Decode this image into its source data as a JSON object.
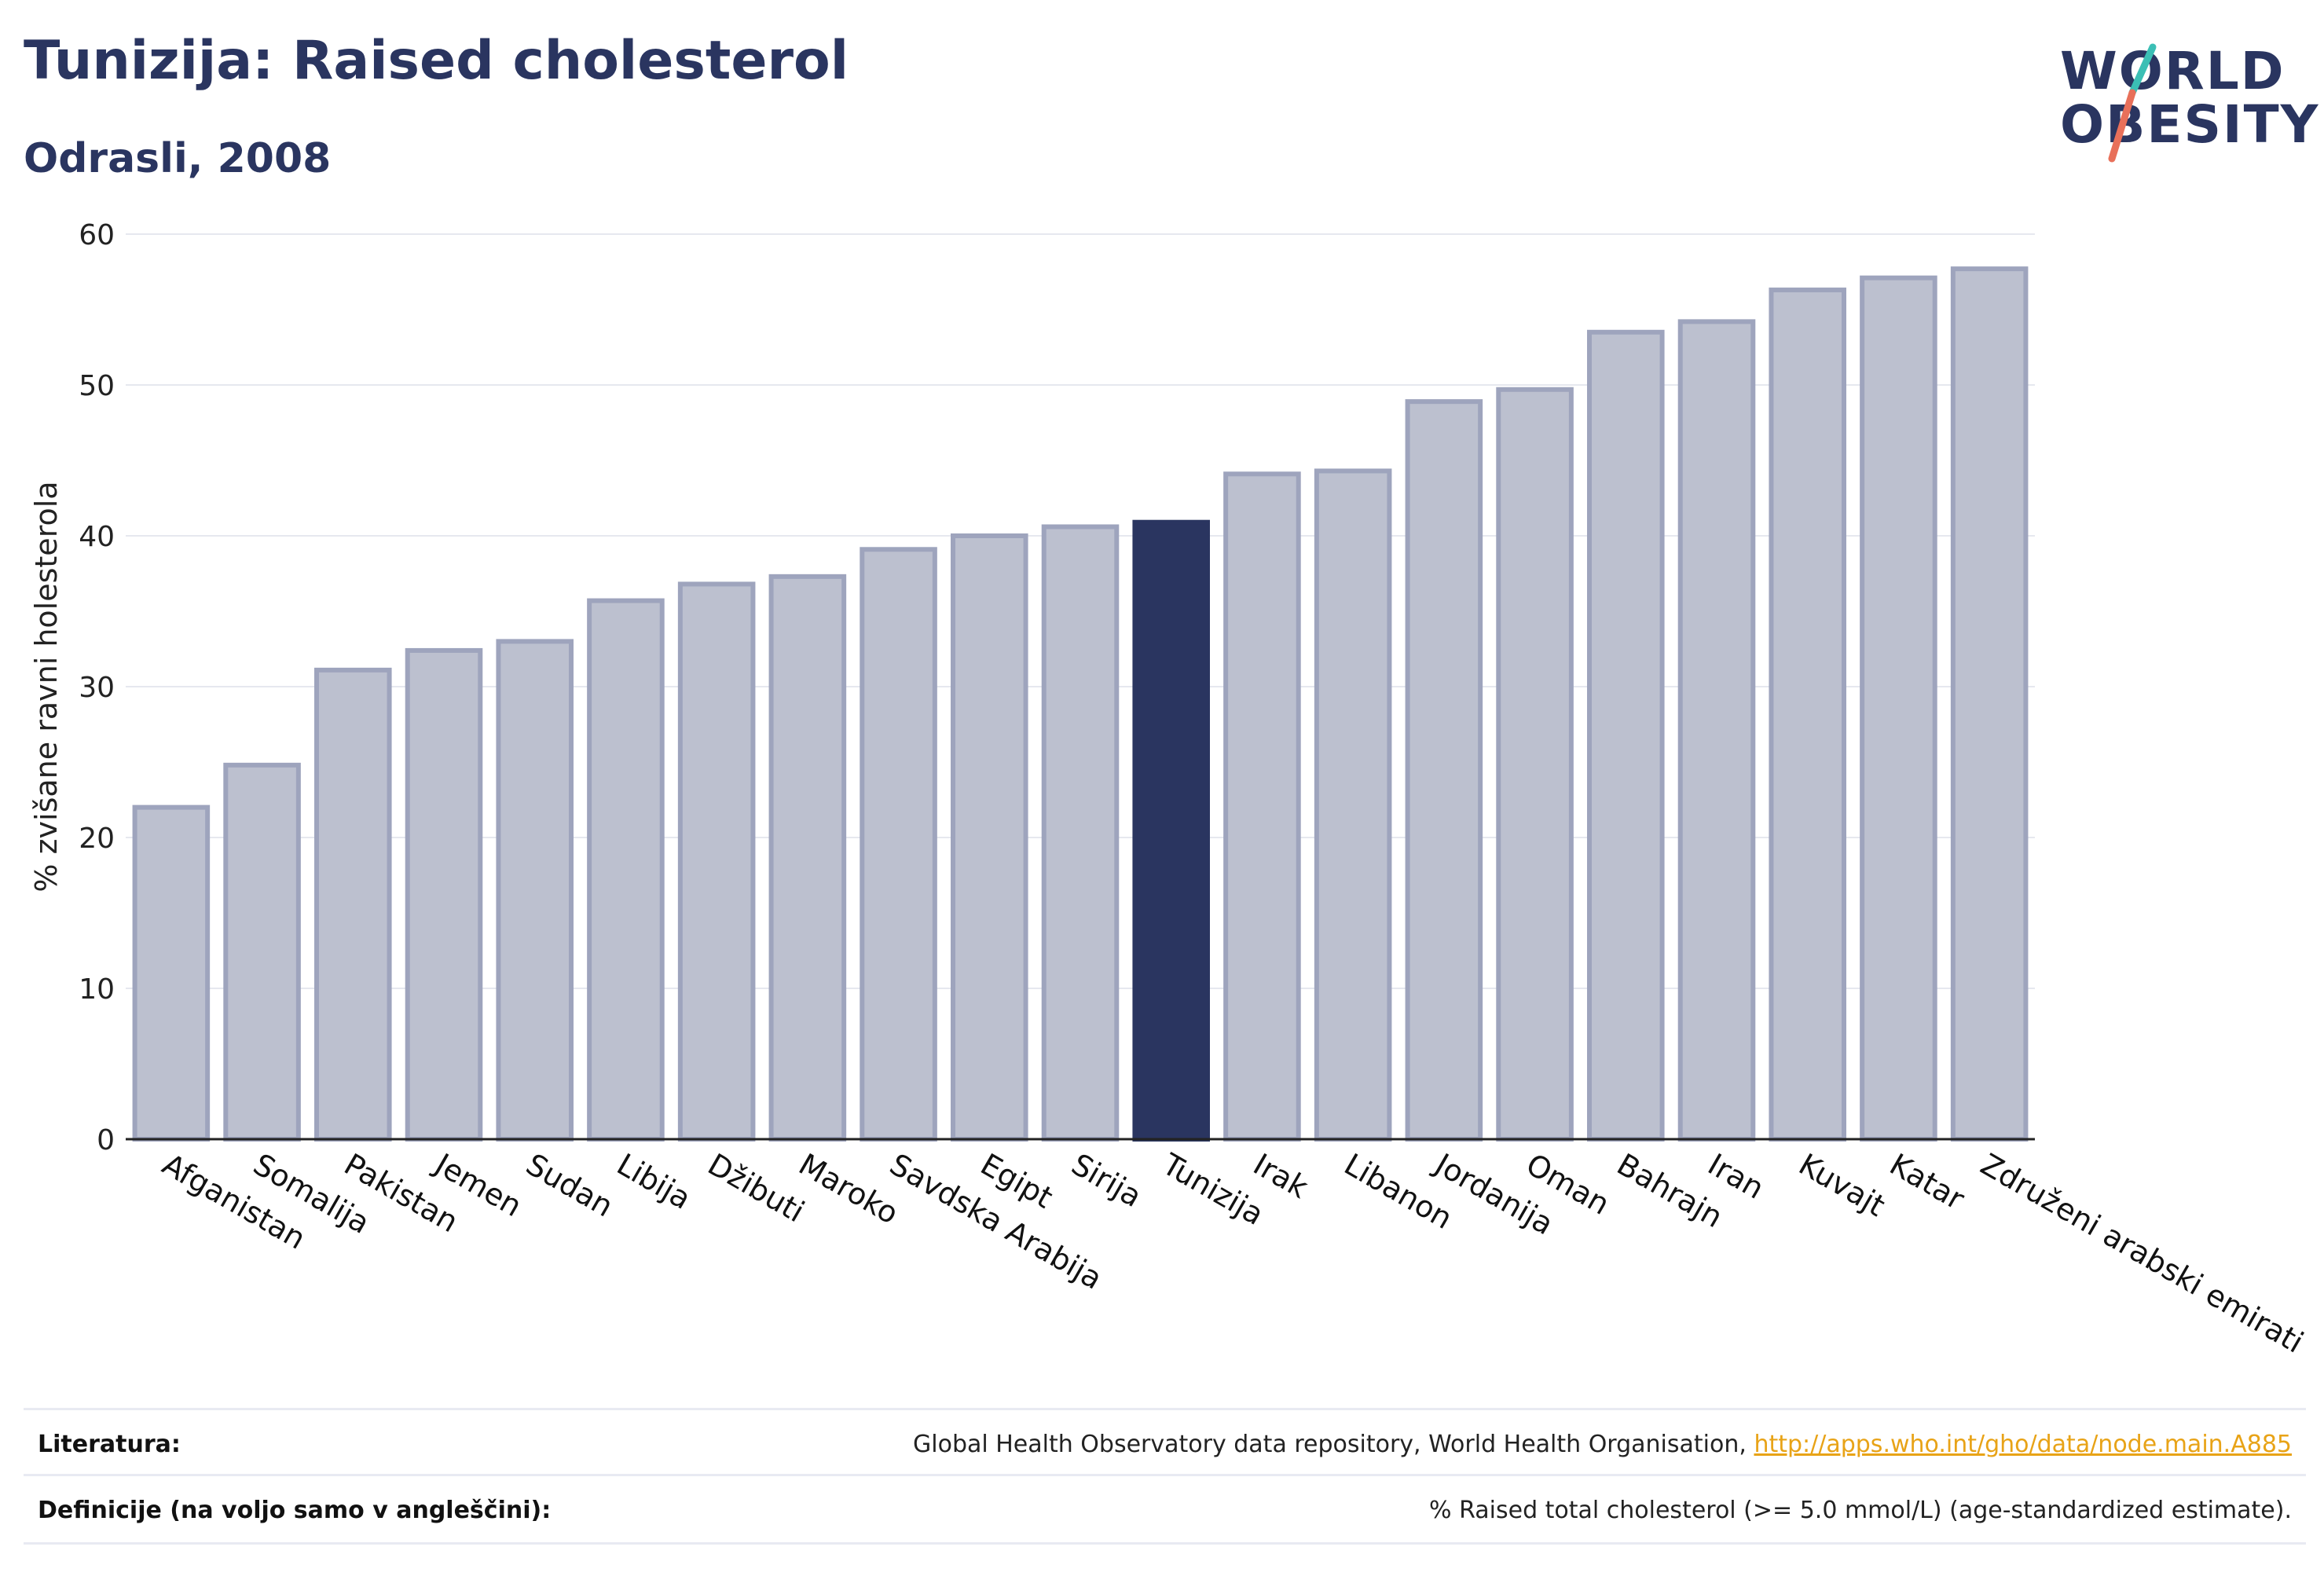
{
  "header": {
    "title": "Tunizija: Raised cholesterol",
    "subtitle": "Odrasli, 2008"
  },
  "logo": {
    "line1": "WORLD",
    "line2": "OBESITY"
  },
  "colors": {
    "bar": "#bcc0cf",
    "bar_border": "#9ea4bd",
    "highlight": "#2a3560",
    "grid": "#e6e8ef"
  },
  "chart_data": {
    "type": "bar",
    "ylabel": "% zvišane ravni holesterola",
    "ylim": [
      0,
      60
    ],
    "yticks": [
      0,
      10,
      20,
      30,
      40,
      50,
      60
    ],
    "grid": true,
    "highlight": "Tunizija",
    "categories": [
      "Afganistan",
      "Somalija",
      "Pakistan",
      "Jemen",
      "Sudan",
      "Libija",
      "Džibuti",
      "Maroko",
      "Savdska Arabija",
      "Egipt",
      "Sirija",
      "Tunizija",
      "Irak",
      "Libanon",
      "Jordanija",
      "Oman",
      "Bahrajn",
      "Iran",
      "Kuvajt",
      "Katar",
      "Združeni arabski emirati"
    ],
    "values": [
      22.0,
      24.8,
      31.1,
      32.4,
      33.0,
      35.7,
      36.8,
      37.3,
      39.1,
      40.0,
      40.6,
      40.9,
      44.1,
      44.3,
      48.9,
      49.7,
      53.5,
      54.2,
      56.3,
      57.1,
      57.7
    ]
  },
  "footer": {
    "source_label": "Literatura:",
    "source_text": "Global Health Observatory data repository, World Health Organisation, ",
    "source_link": "http://apps.who.int/gho/data/node.main.A885",
    "definition_label": "Definicije (na voljo samo v angleščini):",
    "definition_text": "% Raised total cholesterol (>= 5.0 mmol/L) (age-standardized estimate)."
  }
}
